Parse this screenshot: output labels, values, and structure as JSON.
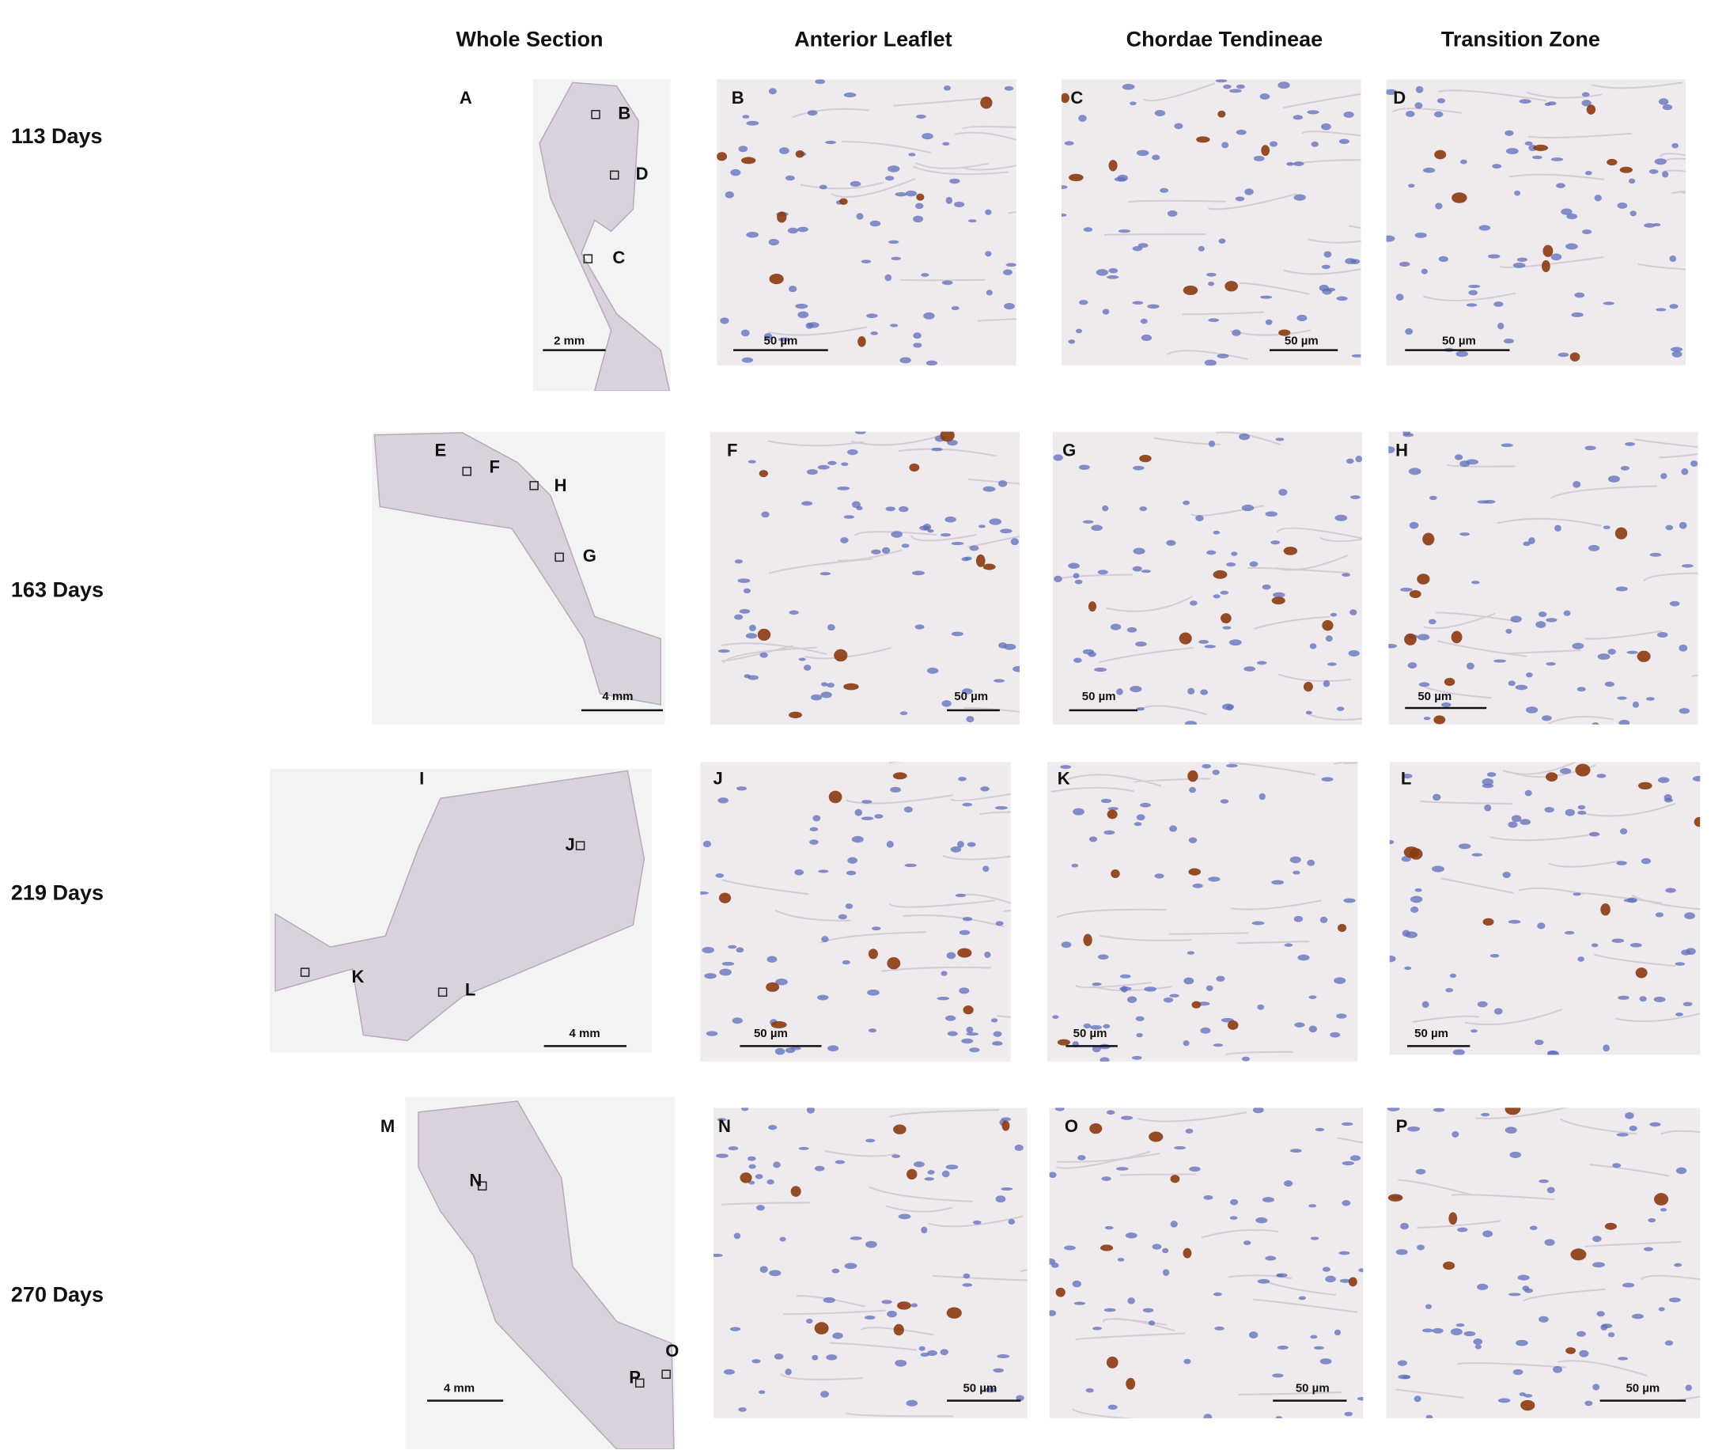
{
  "columns": [
    "Whole Section",
    "Anterior Leaflet",
    "Chordae Tendineae",
    "Transition Zone"
  ],
  "rows": [
    {
      "label": "113 Days",
      "panels": [
        {
          "letter": "A",
          "scale": "2 mm",
          "regions": [
            "B",
            "D",
            "C"
          ]
        },
        {
          "letter": "B",
          "scale": "50 µm"
        },
        {
          "letter": "C",
          "scale": "50 µm"
        },
        {
          "letter": "D",
          "scale": "50 µm"
        }
      ]
    },
    {
      "label": "163 Days",
      "panels": [
        {
          "letter": "E",
          "scale": "4 mm",
          "regions": [
            "F",
            "H",
            "G"
          ]
        },
        {
          "letter": "F",
          "scale": "50 µm"
        },
        {
          "letter": "G",
          "scale": "50 µm"
        },
        {
          "letter": "H",
          "scale": "50 µm"
        }
      ]
    },
    {
      "label": "219 Days",
      "panels": [
        {
          "letter": "I",
          "scale": "4 mm",
          "regions": [
            "J",
            "K",
            "L"
          ]
        },
        {
          "letter": "J",
          "scale": "50 µm"
        },
        {
          "letter": "K",
          "scale": "50 µm"
        },
        {
          "letter": "L",
          "scale": "50 µm"
        }
      ]
    },
    {
      "label": "270 Days",
      "panels": [
        {
          "letter": "M",
          "scale": "4 mm",
          "regions": [
            "N",
            "P",
            "O"
          ]
        },
        {
          "letter": "N",
          "scale": "50 µm"
        },
        {
          "letter": "O",
          "scale": "50 µm"
        },
        {
          "letter": "P",
          "scale": "50 µm"
        }
      ]
    }
  ]
}
